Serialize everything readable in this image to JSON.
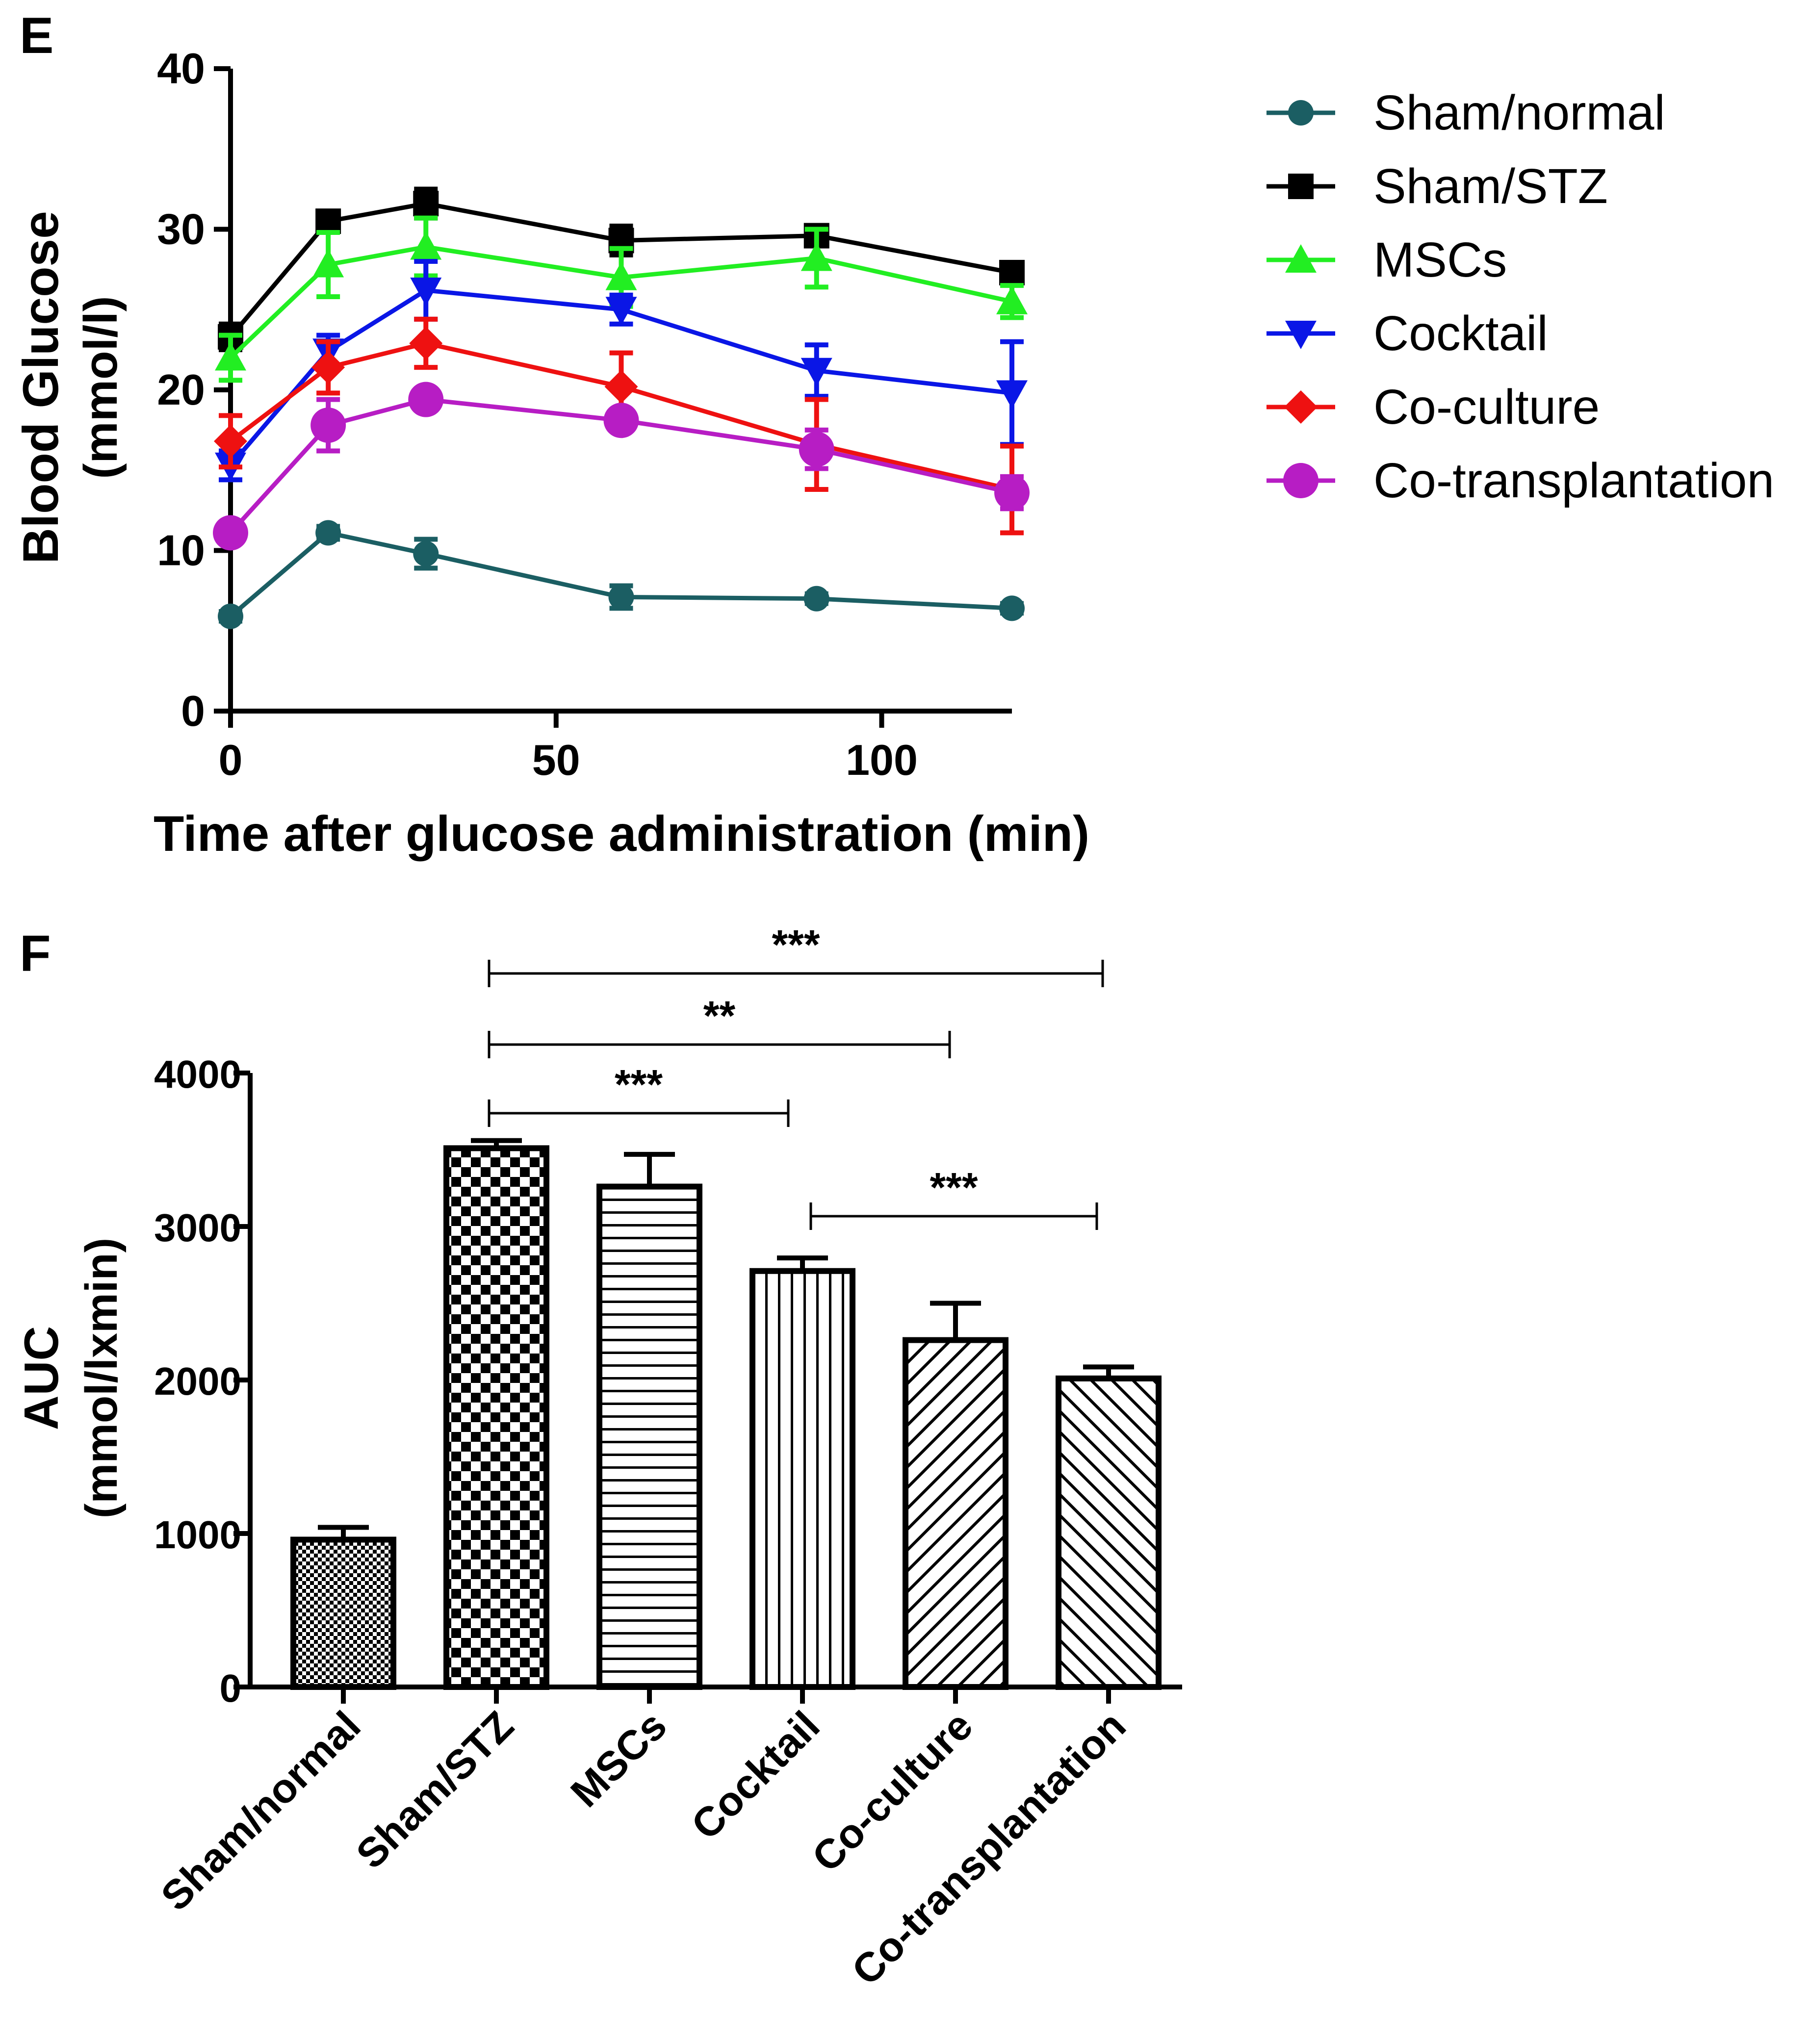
{
  "colors": {
    "sham_normal": "#1b5e63",
    "sham_stz": "#000000",
    "mscs": "#22ee22",
    "cocktail": "#0a16e6",
    "coculture": "#ee1111",
    "cotransplantation": "#b71dc4"
  },
  "panel_e_label": "E",
  "panel_f_label": "F",
  "chart_data": [
    {
      "type": "line",
      "title": "",
      "xlabel": "Time after glucose administration (min)",
      "ylabel": "Blood Glucose",
      "ylabel_unit": "(mmol/l)",
      "xlim": [
        0,
        120
      ],
      "ylim": [
        0,
        40
      ],
      "xticks": [
        0,
        50,
        100
      ],
      "yticks": [
        0,
        10,
        20,
        30,
        40
      ],
      "x": [
        0,
        15,
        30,
        60,
        90,
        120
      ],
      "legend_position": "right",
      "series": [
        {
          "name": "Sham/normal",
          "key": "sham_normal",
          "marker": "circle",
          "values": [
            5.9,
            11.1,
            9.8,
            7.1,
            7.0,
            6.4
          ],
          "errors": [
            0.3,
            0.4,
            0.9,
            0.7,
            0.3,
            0.3
          ]
        },
        {
          "name": "Sham/STZ",
          "key": "sham_stz",
          "marker": "square",
          "values": [
            23.3,
            30.5,
            31.6,
            29.3,
            29.6,
            27.3
          ],
          "errors": [
            0.8,
            0.5,
            0.9,
            0.9,
            0.6,
            0.4
          ]
        },
        {
          "name": "MSCs",
          "key": "mscs",
          "marker": "triangle-up",
          "values": [
            22.0,
            27.8,
            28.9,
            27.0,
            28.2,
            25.5
          ],
          "errors": [
            1.4,
            2.0,
            1.8,
            1.8,
            1.8,
            1.0
          ]
        },
        {
          "name": "Cocktail",
          "key": "cocktail",
          "marker": "triangle-down",
          "values": [
            15.3,
            22.4,
            26.2,
            25.0,
            21.2,
            19.8
          ],
          "errors": [
            0.9,
            1.0,
            1.8,
            0.9,
            1.6,
            3.2
          ]
        },
        {
          "name": "Co-culture",
          "key": "coculture",
          "marker": "diamond",
          "values": [
            16.8,
            21.4,
            22.9,
            20.2,
            16.6,
            13.8
          ],
          "errors": [
            1.6,
            1.6,
            1.5,
            2.1,
            2.8,
            2.7
          ]
        },
        {
          "name": "Co-transplantation",
          "key": "cotransplantation",
          "marker": "circle-large",
          "values": [
            11.1,
            17.8,
            19.4,
            18.1,
            16.3,
            13.6
          ],
          "errors": [
            0.4,
            1.6,
            0.6,
            0.5,
            1.2,
            1.0
          ]
        }
      ]
    },
    {
      "type": "bar",
      "title": "",
      "xlabel": "",
      "ylabel": "AUC",
      "ylabel_unit": "(mmol/lxmin)",
      "ylim": [
        0,
        4000
      ],
      "yticks": [
        0,
        1000,
        2000,
        3000,
        4000
      ],
      "categories": [
        "Sham/normal",
        "Sham/STZ",
        "MSCs",
        "Cocktail",
        "Co-culture",
        "Co-transplantation"
      ],
      "patterns": [
        "fine-check",
        "check",
        "horizontal",
        "vertical",
        "diagonal-up",
        "diagonal-down"
      ],
      "values": [
        960,
        3510,
        3260,
        2710,
        2260,
        2010
      ],
      "errors": [
        80,
        50,
        210,
        85,
        240,
        75
      ],
      "significance": [
        {
          "from": 1,
          "to": 3,
          "label": "***"
        },
        {
          "from": 1,
          "to": 4,
          "label": "**"
        },
        {
          "from": 1,
          "to": 5,
          "label": "***"
        },
        {
          "from": 3,
          "to": 5,
          "label": "***"
        }
      ]
    }
  ]
}
